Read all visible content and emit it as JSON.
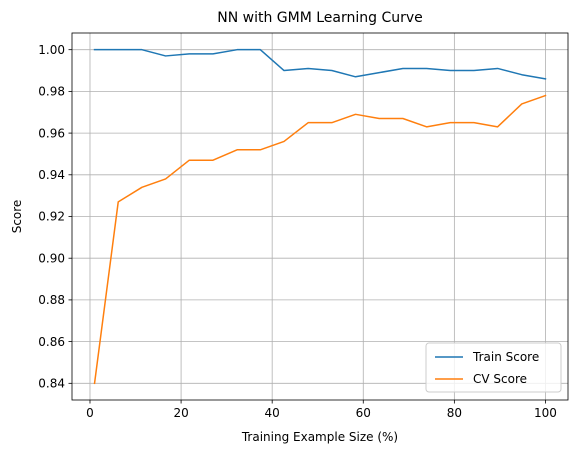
{
  "chart_data": {
    "type": "line",
    "title": "NN with GMM Learning Curve",
    "xlabel": "Training Example Size (%)",
    "ylabel": "Score",
    "xlim": [
      -3.95,
      104.95
    ],
    "ylim": [
      0.832,
      1.008
    ],
    "xticks": [
      0,
      20,
      40,
      60,
      80,
      100
    ],
    "yticks": [
      0.84,
      0.86,
      0.88,
      0.9,
      0.92,
      0.94,
      0.96,
      0.98,
      1.0
    ],
    "ytick_labels": [
      "0.84",
      "0.86",
      "0.88",
      "0.90",
      "0.92",
      "0.94",
      "0.96",
      "0.98",
      "1.00"
    ],
    "grid": true,
    "legend_position": "lower-right",
    "x": [
      1,
      6.2,
      11.4,
      16.6,
      21.8,
      27,
      32.3,
      37.4,
      42.6,
      47.9,
      53.1,
      58.3,
      63.5,
      68.7,
      73.9,
      79.1,
      84.3,
      89.5,
      94.8,
      100
    ],
    "series": [
      {
        "name": "Train Score",
        "color": "#1f77b4",
        "values": [
          1.0,
          1.0,
          1.0,
          0.997,
          0.998,
          0.998,
          1.0,
          1.0,
          0.99,
          0.991,
          0.99,
          0.987,
          0.989,
          0.991,
          0.991,
          0.99,
          0.99,
          0.991,
          0.988,
          0.986
        ]
      },
      {
        "name": "CV Score",
        "color": "#ff7f0e",
        "values": [
          0.84,
          0.927,
          0.934,
          0.938,
          0.947,
          0.947,
          0.952,
          0.952,
          0.956,
          0.965,
          0.965,
          0.969,
          0.967,
          0.967,
          0.963,
          0.965,
          0.965,
          0.963,
          0.974,
          0.978
        ]
      }
    ]
  }
}
